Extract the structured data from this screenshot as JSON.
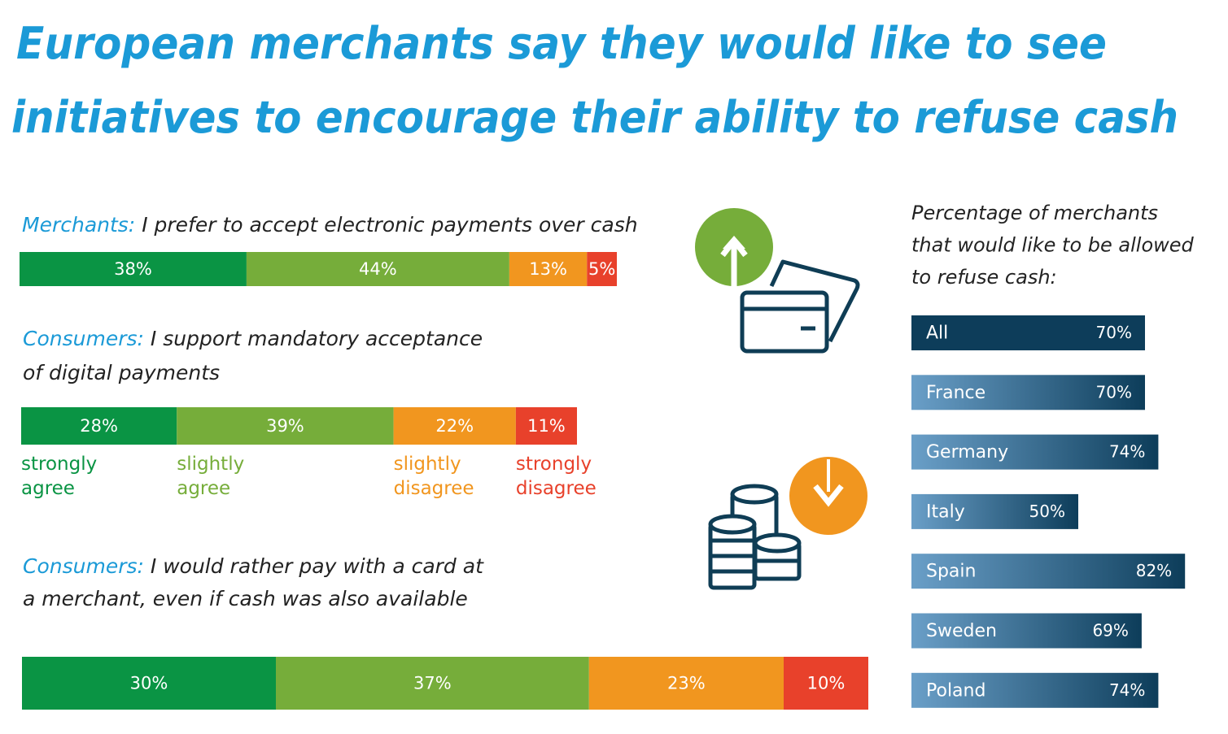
{
  "title": [
    "European merchants say they would  like to see",
    "initiatives to encourage  their ability to refuse cash"
  ],
  "legend": [
    {
      "name": "strongly agree",
      "color": "#0a9444"
    },
    {
      "name": "slightly agree",
      "color": "#76ad3a"
    },
    {
      "name": "slightly disagree",
      "color": "#f1961f"
    },
    {
      "name": "strongly disagree",
      "color": "#e8412b"
    }
  ],
  "chart_data": [
    {
      "type": "stacked-bar",
      "subject": "Merchants:",
      "question": [
        "I prefer to accept electronic payments over cash"
      ],
      "values": [
        38,
        44,
        13,
        5
      ],
      "value_labels": [
        "38%",
        "44%",
        "13%",
        "5%"
      ],
      "xlim": [
        0,
        100
      ]
    },
    {
      "type": "stacked-bar",
      "subject": "Consumers:",
      "question": [
        "I support mandatory acceptance",
        "of digital payments"
      ],
      "values": [
        28,
        39,
        22,
        11
      ],
      "value_labels": [
        "28%",
        "39%",
        "22%",
        "11%"
      ],
      "xlim": [
        0,
        100
      ],
      "legend": true
    },
    {
      "type": "stacked-bar",
      "subject": "Consumers:",
      "question": [
        "I would rather pay with a card at",
        "a merchant, even if cash was also available"
      ],
      "values": [
        30,
        37,
        23,
        10
      ],
      "value_labels": [
        "30%",
        "37%",
        "23%",
        "10%"
      ],
      "xlim": [
        0,
        100
      ]
    },
    {
      "type": "bar",
      "title": [
        "Percentage of merchants",
        "that would like to be allowed",
        "to refuse cash:"
      ],
      "categories": [
        "All",
        "France",
        "Germany",
        "Italy",
        "Spain",
        "Sweden",
        "Poland"
      ],
      "values": [
        70,
        70,
        74,
        50,
        82,
        69,
        74
      ],
      "value_labels": [
        "70%",
        "70%",
        "74%",
        "50%",
        "82%",
        "69%",
        "74%"
      ],
      "colors": [
        "#0d3d5a",
        "#6a9fc8",
        "#6a9fc8",
        "#6a9fc8",
        "#6a9fc8",
        "#6a9fc8",
        "#6a9fc8"
      ],
      "gradient_to": "#0d3d5a",
      "xlim": [
        0,
        100
      ]
    }
  ]
}
